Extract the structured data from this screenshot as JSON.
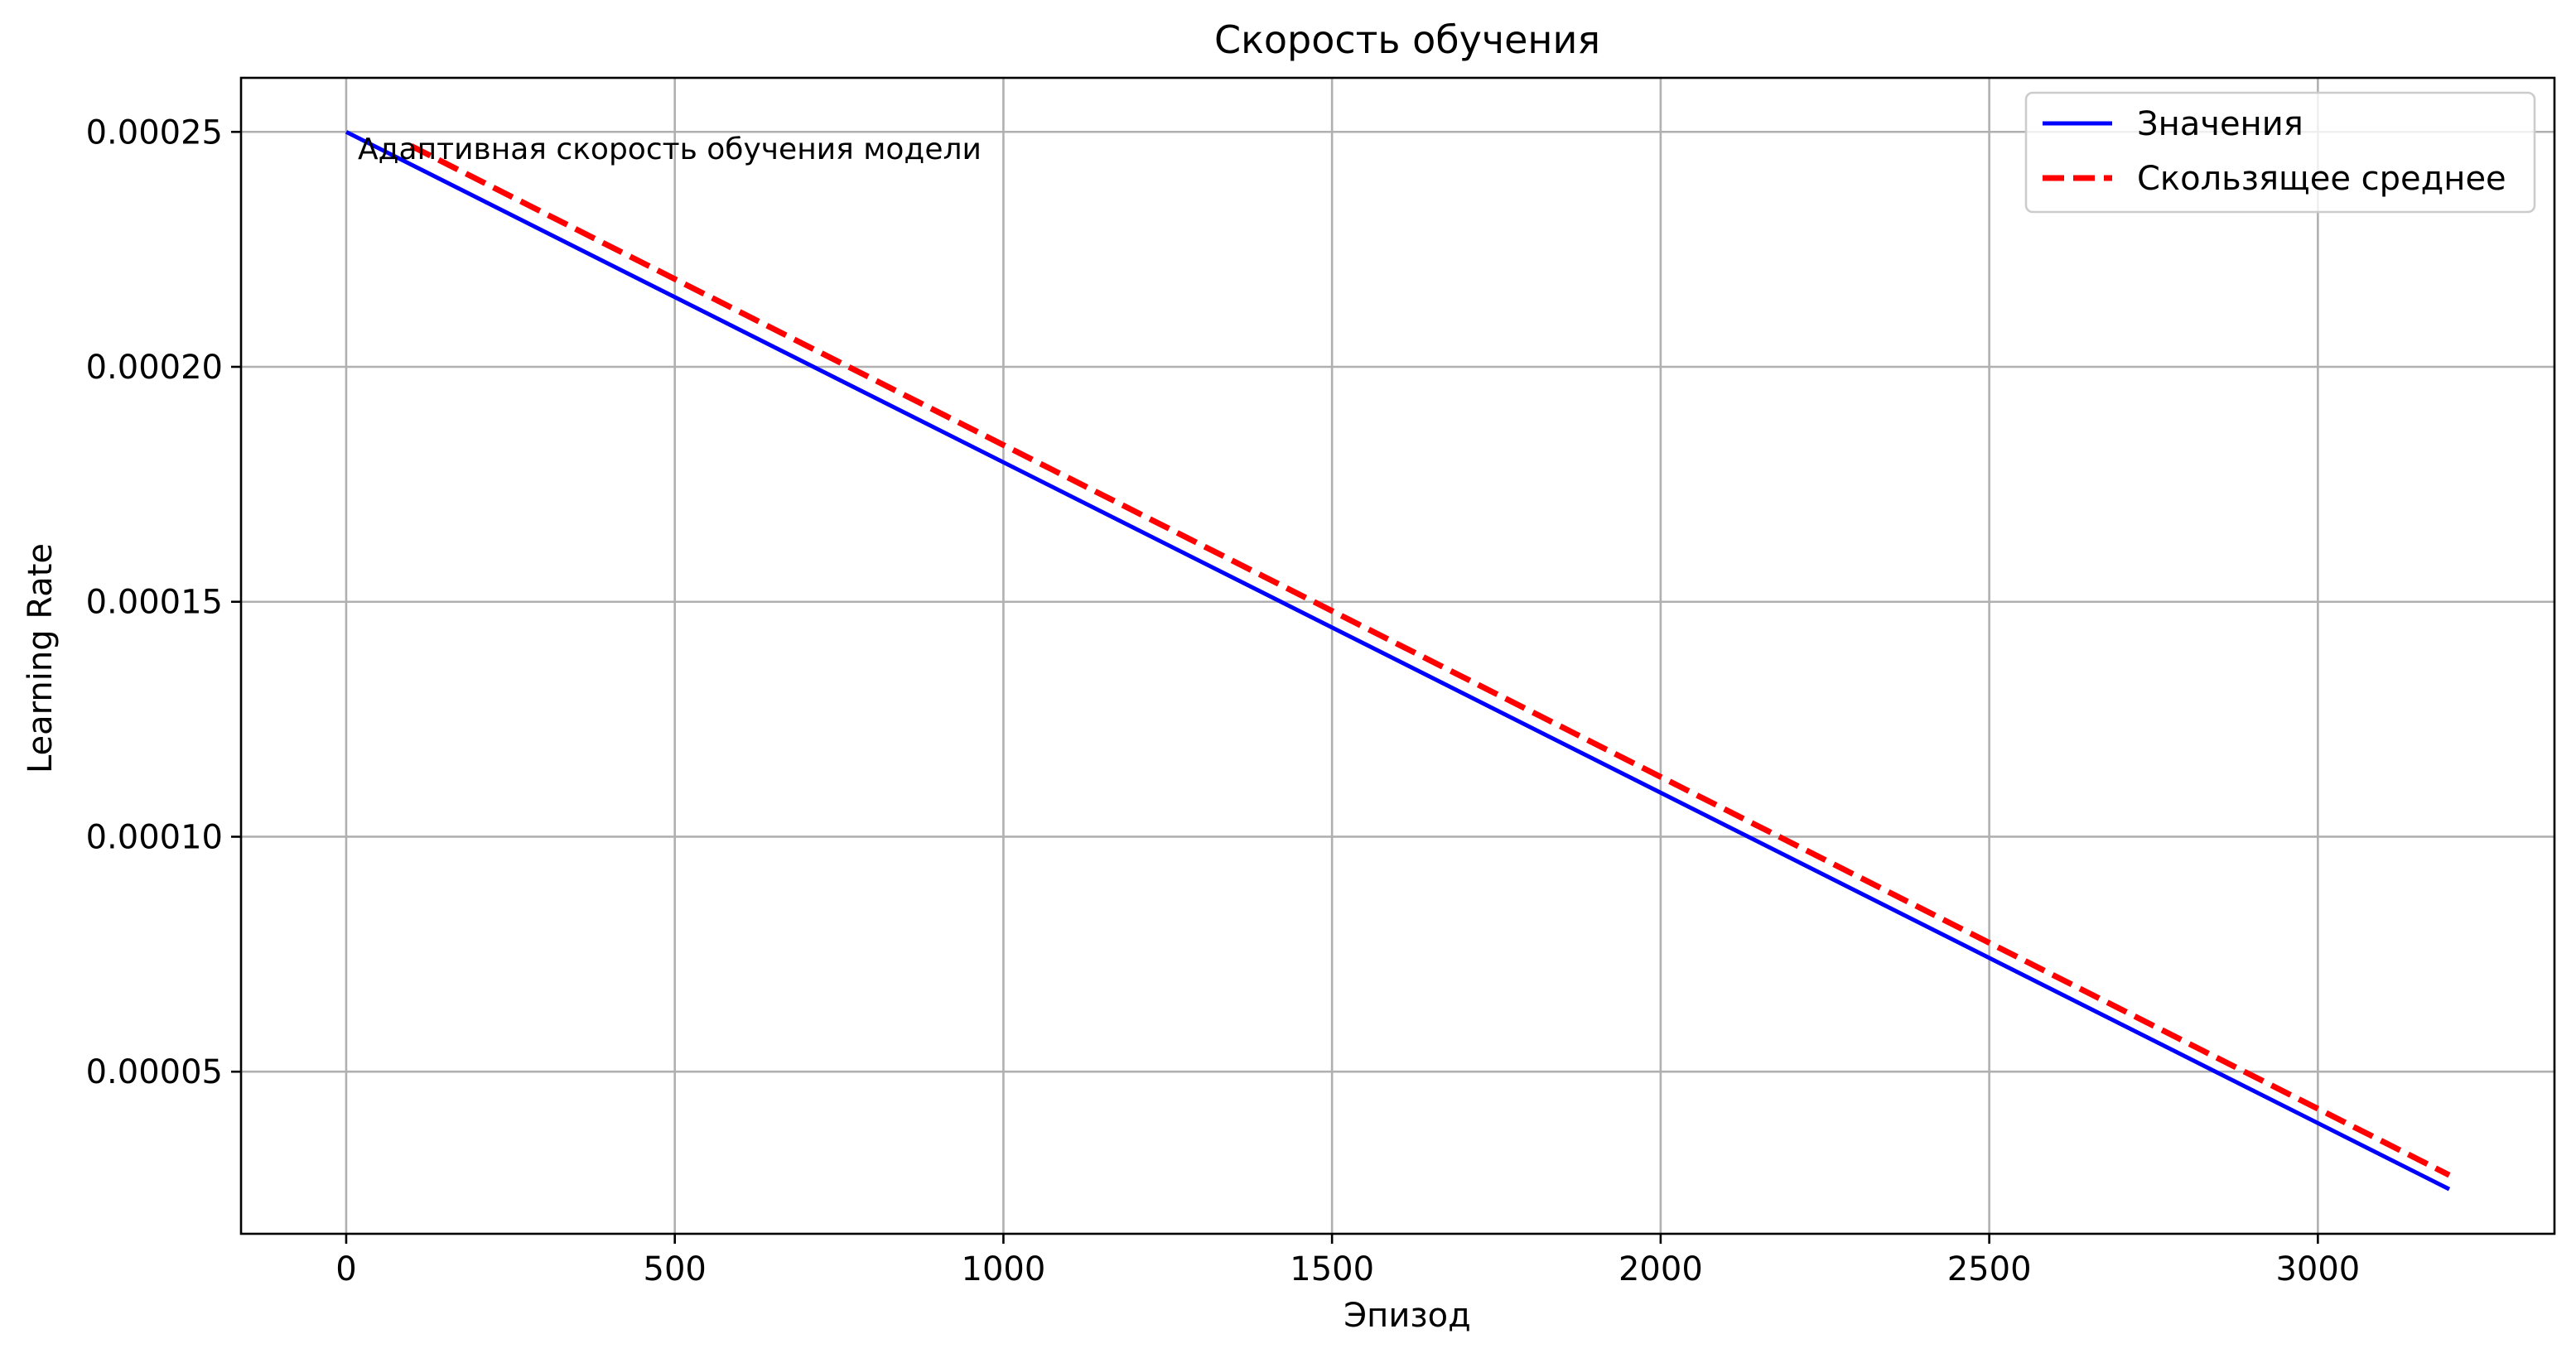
{
  "chart_data": {
    "type": "line",
    "title": "Скорость обучения",
    "xlabel": "Эпизод",
    "ylabel": "Learning Rate",
    "xlim": [
      -160,
      3360
    ],
    "ylim": [
      1.55e-05,
      0.0002615
    ],
    "xticks": [
      0,
      500,
      1000,
      1500,
      2000,
      2500,
      3000
    ],
    "xtick_labels": [
      "0",
      "500",
      "1000",
      "1500",
      "2000",
      "2500",
      "3000"
    ],
    "yticks": [
      5e-05,
      0.0001,
      0.00015,
      0.0002,
      0.00025
    ],
    "ytick_labels": [
      "0.00005",
      "0.00010",
      "0.00015",
      "0.00020",
      "0.00025"
    ],
    "grid": true,
    "legend_position": "top-right",
    "annotation": "Адаптивная скорость обучения модели",
    "series": [
      {
        "name": "Значения",
        "color": "#0000ff",
        "style": "solid",
        "x": [
          0,
          3200
        ],
        "y": [
          0.00025,
          2.5e-05
        ]
      },
      {
        "name": "Скользящее среднее",
        "color": "#ff0000",
        "style": "dashed",
        "x": [
          99,
          3200
        ],
        "y": [
          0.000247,
          2.8e-05
        ]
      }
    ]
  }
}
